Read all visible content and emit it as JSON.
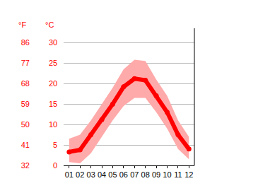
{
  "chart_data": {
    "type": "line",
    "categories": [
      "01",
      "02",
      "03",
      "04",
      "05",
      "06",
      "07",
      "08",
      "09",
      "10",
      "11",
      "12"
    ],
    "values": [
      3.3,
      3.8,
      7.5,
      11.2,
      15.0,
      19.2,
      21.2,
      20.8,
      17.0,
      13.0,
      7.5,
      4.0
    ],
    "color": "#ff0000",
    "marker": "circle",
    "band": {
      "low": [
        0.8,
        0.5,
        3.0,
        7.0,
        11.0,
        14.5,
        16.5,
        16.5,
        13.0,
        9.0,
        4.0,
        1.5
      ],
      "high": [
        6.5,
        7.5,
        11.0,
        15.0,
        19.0,
        23.5,
        25.8,
        25.5,
        21.0,
        17.0,
        11.0,
        7.0
      ],
      "color": "#ffaaaa"
    },
    "ylabel": "°C",
    "ylim": [
      0,
      33.5
    ],
    "yticks": [
      0,
      5,
      10,
      15,
      20,
      25,
      30
    ],
    "y2label": "°F",
    "y2lim": [
      32,
      92.3
    ],
    "y2ticks": [
      32,
      41,
      50,
      59,
      68,
      77,
      86
    ],
    "grid": true
  }
}
